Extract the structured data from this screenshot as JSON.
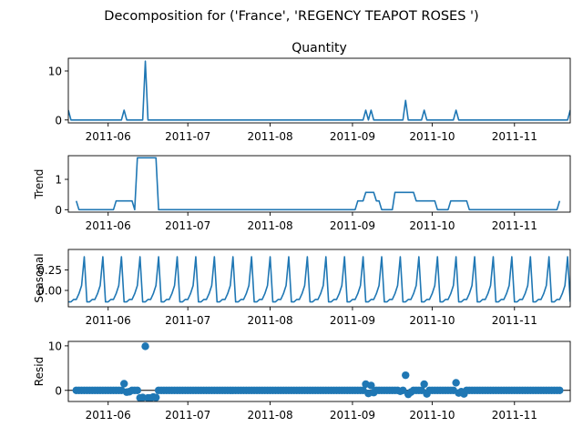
{
  "suptitle": "Decomposition for ('France', 'REGENCY TEAPOT ROSES ')",
  "colors": {
    "series": "#1f77b4",
    "axis": "#000000",
    "zero": "#000000"
  },
  "chart_data": [
    {
      "type": "line",
      "title": "Quantity",
      "ylabel": "",
      "grid": false,
      "xlim": [
        "2011-05-17",
        "2011-11-22"
      ],
      "xticks": [
        "2011-06-01",
        "2011-07-01",
        "2011-08-01",
        "2011-09-01",
        "2011-10-01",
        "2011-11-01"
      ],
      "xticklabels": [
        "2011-06",
        "2011-07",
        "2011-08",
        "2011-09",
        "2011-10",
        "2011-11"
      ],
      "ylim": [
        -0.6,
        12.6
      ],
      "yticks": [
        0,
        10
      ],
      "yticklabels": [
        "0",
        "10"
      ],
      "x": [
        "2011-05-17",
        "2011-05-18",
        "2011-06-06",
        "2011-06-07",
        "2011-06-08",
        "2011-06-14",
        "2011-06-15",
        "2011-06-16",
        "2011-09-05",
        "2011-09-06",
        "2011-09-07",
        "2011-09-08",
        "2011-09-09",
        "2011-09-20",
        "2011-09-21",
        "2011-09-22",
        "2011-09-27",
        "2011-09-28",
        "2011-09-29",
        "2011-10-09",
        "2011-10-10",
        "2011-10-11",
        "2011-11-21",
        "2011-11-22"
      ],
      "y": [
        2,
        0,
        0,
        2,
        0,
        0,
        12,
        0,
        0,
        2,
        0,
        2,
        0,
        0,
        4,
        0,
        0,
        2,
        0,
        0,
        2,
        0,
        0,
        2
      ]
    },
    {
      "type": "line",
      "title": "",
      "ylabel": "Trend",
      "grid": false,
      "xlim": [
        "2011-05-17",
        "2011-11-22"
      ],
      "xticks": [
        "2011-06-01",
        "2011-07-01",
        "2011-08-01",
        "2011-09-01",
        "2011-10-01",
        "2011-11-01"
      ],
      "xticklabels": [
        "2011-06",
        "2011-07",
        "2011-08",
        "2011-09",
        "2011-10",
        "2011-11"
      ],
      "ylim": [
        -0.08,
        1.78
      ],
      "yticks": [
        0,
        1
      ],
      "yticklabels": [
        "0",
        "1"
      ],
      "x": [
        "2011-05-20",
        "2011-05-21",
        "2011-06-03",
        "2011-06-04",
        "2011-06-10",
        "2011-06-11",
        "2011-06-12",
        "2011-06-13",
        "2011-06-19",
        "2011-06-20",
        "2011-09-02",
        "2011-09-03",
        "2011-09-05",
        "2011-09-06",
        "2011-09-09",
        "2011-09-10",
        "2011-09-11",
        "2011-09-12",
        "2011-09-16",
        "2011-09-17",
        "2011-09-24",
        "2011-09-25",
        "2011-10-02",
        "2011-10-03",
        "2011-10-07",
        "2011-10-08",
        "2011-10-14",
        "2011-10-15",
        "2011-11-17",
        "2011-11-18"
      ],
      "y": [
        0.29,
        0,
        0,
        0.29,
        0.29,
        0,
        1.71,
        1.71,
        1.71,
        0,
        0,
        0.29,
        0.29,
        0.57,
        0.57,
        0.29,
        0.29,
        0,
        0,
        0.57,
        0.57,
        0.29,
        0.29,
        0,
        0,
        0.29,
        0.29,
        0,
        0,
        0.29
      ]
    },
    {
      "type": "line",
      "title": "",
      "ylabel": "Seasonal",
      "grid": false,
      "xlim": [
        "2011-05-17",
        "2011-11-22"
      ],
      "xticks": [
        "2011-06-01",
        "2011-07-01",
        "2011-08-01",
        "2011-09-01",
        "2011-10-01",
        "2011-11-01"
      ],
      "xticklabels": [
        "2011-06",
        "2011-07",
        "2011-08",
        "2011-09",
        "2011-10",
        "2011-11"
      ],
      "ylim": [
        -0.2,
        0.5
      ],
      "yticks": [
        0,
        0.25
      ],
      "yticklabels": [
        "0.00",
        "0.25"
      ],
      "period_start": "2011-05-17",
      "period_days": 7,
      "pattern": [
        -0.14,
        -0.14,
        -0.11,
        -0.11,
        -0.04,
        0.06,
        0.41
      ],
      "x_end": "2011-11-22"
    },
    {
      "type": "scatter",
      "title": "",
      "ylabel": "Resid",
      "grid": false,
      "xlim": [
        "2011-05-17",
        "2011-11-22"
      ],
      "xticks": [
        "2011-06-01",
        "2011-07-01",
        "2011-08-01",
        "2011-09-01",
        "2011-10-01",
        "2011-11-01"
      ],
      "xticklabels": [
        "2011-06",
        "2011-07",
        "2011-08",
        "2011-09",
        "2011-10",
        "2011-11"
      ],
      "ylim": [
        -2.5,
        11.0
      ],
      "yticks": [
        0,
        10
      ],
      "yticklabels": [
        "0",
        "10"
      ],
      "zero_line": true,
      "x_start": "2011-05-20",
      "x_end": "2011-11-18",
      "default_y": 0,
      "points": [
        {
          "x": "2011-06-07",
          "y": 1.5
        },
        {
          "x": "2011-06-08",
          "y": -0.4
        },
        {
          "x": "2011-06-09",
          "y": -0.3
        },
        {
          "x": "2011-06-13",
          "y": -1.7
        },
        {
          "x": "2011-06-14",
          "y": -1.6
        },
        {
          "x": "2011-06-15",
          "y": 9.9
        },
        {
          "x": "2011-06-16",
          "y": -1.7
        },
        {
          "x": "2011-06-17",
          "y": -1.7
        },
        {
          "x": "2011-06-18",
          "y": -1.5
        },
        {
          "x": "2011-06-19",
          "y": -1.6
        },
        {
          "x": "2011-09-06",
          "y": 1.4
        },
        {
          "x": "2011-09-07",
          "y": -0.7
        },
        {
          "x": "2011-09-08",
          "y": 1.1
        },
        {
          "x": "2011-09-09",
          "y": -0.5
        },
        {
          "x": "2011-09-19",
          "y": -0.2
        },
        {
          "x": "2011-09-21",
          "y": 3.4
        },
        {
          "x": "2011-09-22",
          "y": -0.9
        },
        {
          "x": "2011-09-23",
          "y": -0.4
        },
        {
          "x": "2011-09-28",
          "y": 1.4
        },
        {
          "x": "2011-09-29",
          "y": -0.8
        },
        {
          "x": "2011-10-10",
          "y": 1.7
        },
        {
          "x": "2011-10-11",
          "y": -0.6
        },
        {
          "x": "2011-10-12",
          "y": -0.3
        },
        {
          "x": "2011-10-13",
          "y": -0.8
        }
      ]
    }
  ]
}
